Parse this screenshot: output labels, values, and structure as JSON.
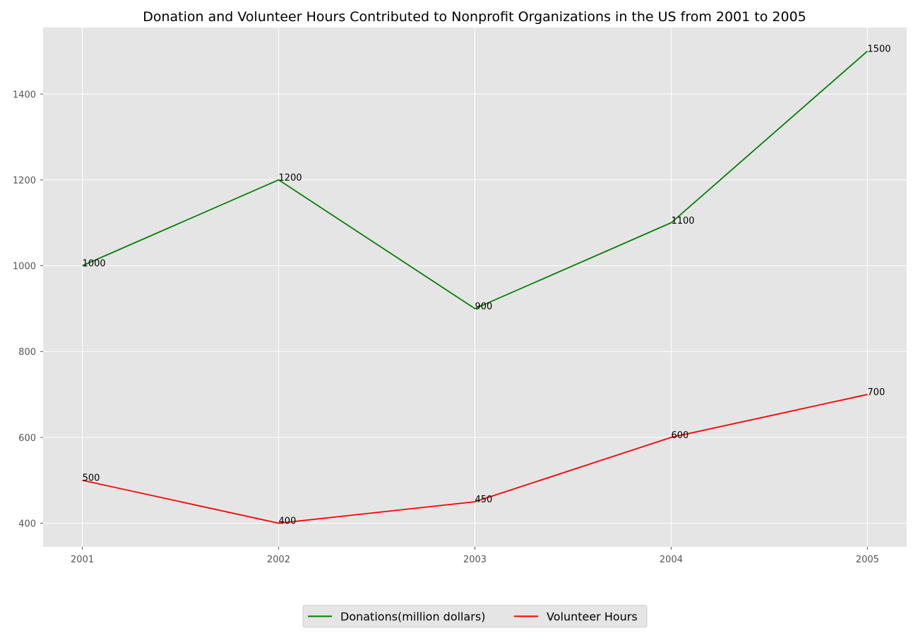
{
  "chart_data": {
    "type": "line",
    "title": "Donation and Volunteer Hours Contributed to Nonprofit Organizations in the US from 2001 to 2005",
    "xlabel": "",
    "ylabel": "",
    "x": [
      "2001",
      "2002",
      "2003",
      "2004",
      "2005"
    ],
    "xlim": [
      2000.8,
      2005.2
    ],
    "ylim": [
      345,
      1555
    ],
    "yticks": [
      400,
      600,
      800,
      1000,
      1200,
      1400
    ],
    "grid": true,
    "legend_placement": "bottom-center",
    "background_color": "#e5e5e5",
    "grid_color": "#ffffff",
    "series": [
      {
        "name": "Donations(million dollars)",
        "color": "#008000",
        "values": [
          1000,
          1200,
          900,
          1100,
          1500
        ],
        "labels": [
          "1000",
          "1200",
          "900",
          "1100",
          "1500"
        ]
      },
      {
        "name": "Volunteer Hours",
        "color": "#ff0000",
        "values": [
          500,
          400,
          450,
          600,
          700
        ],
        "labels": [
          "500",
          "400",
          "450",
          "600",
          "700"
        ]
      }
    ]
  }
}
